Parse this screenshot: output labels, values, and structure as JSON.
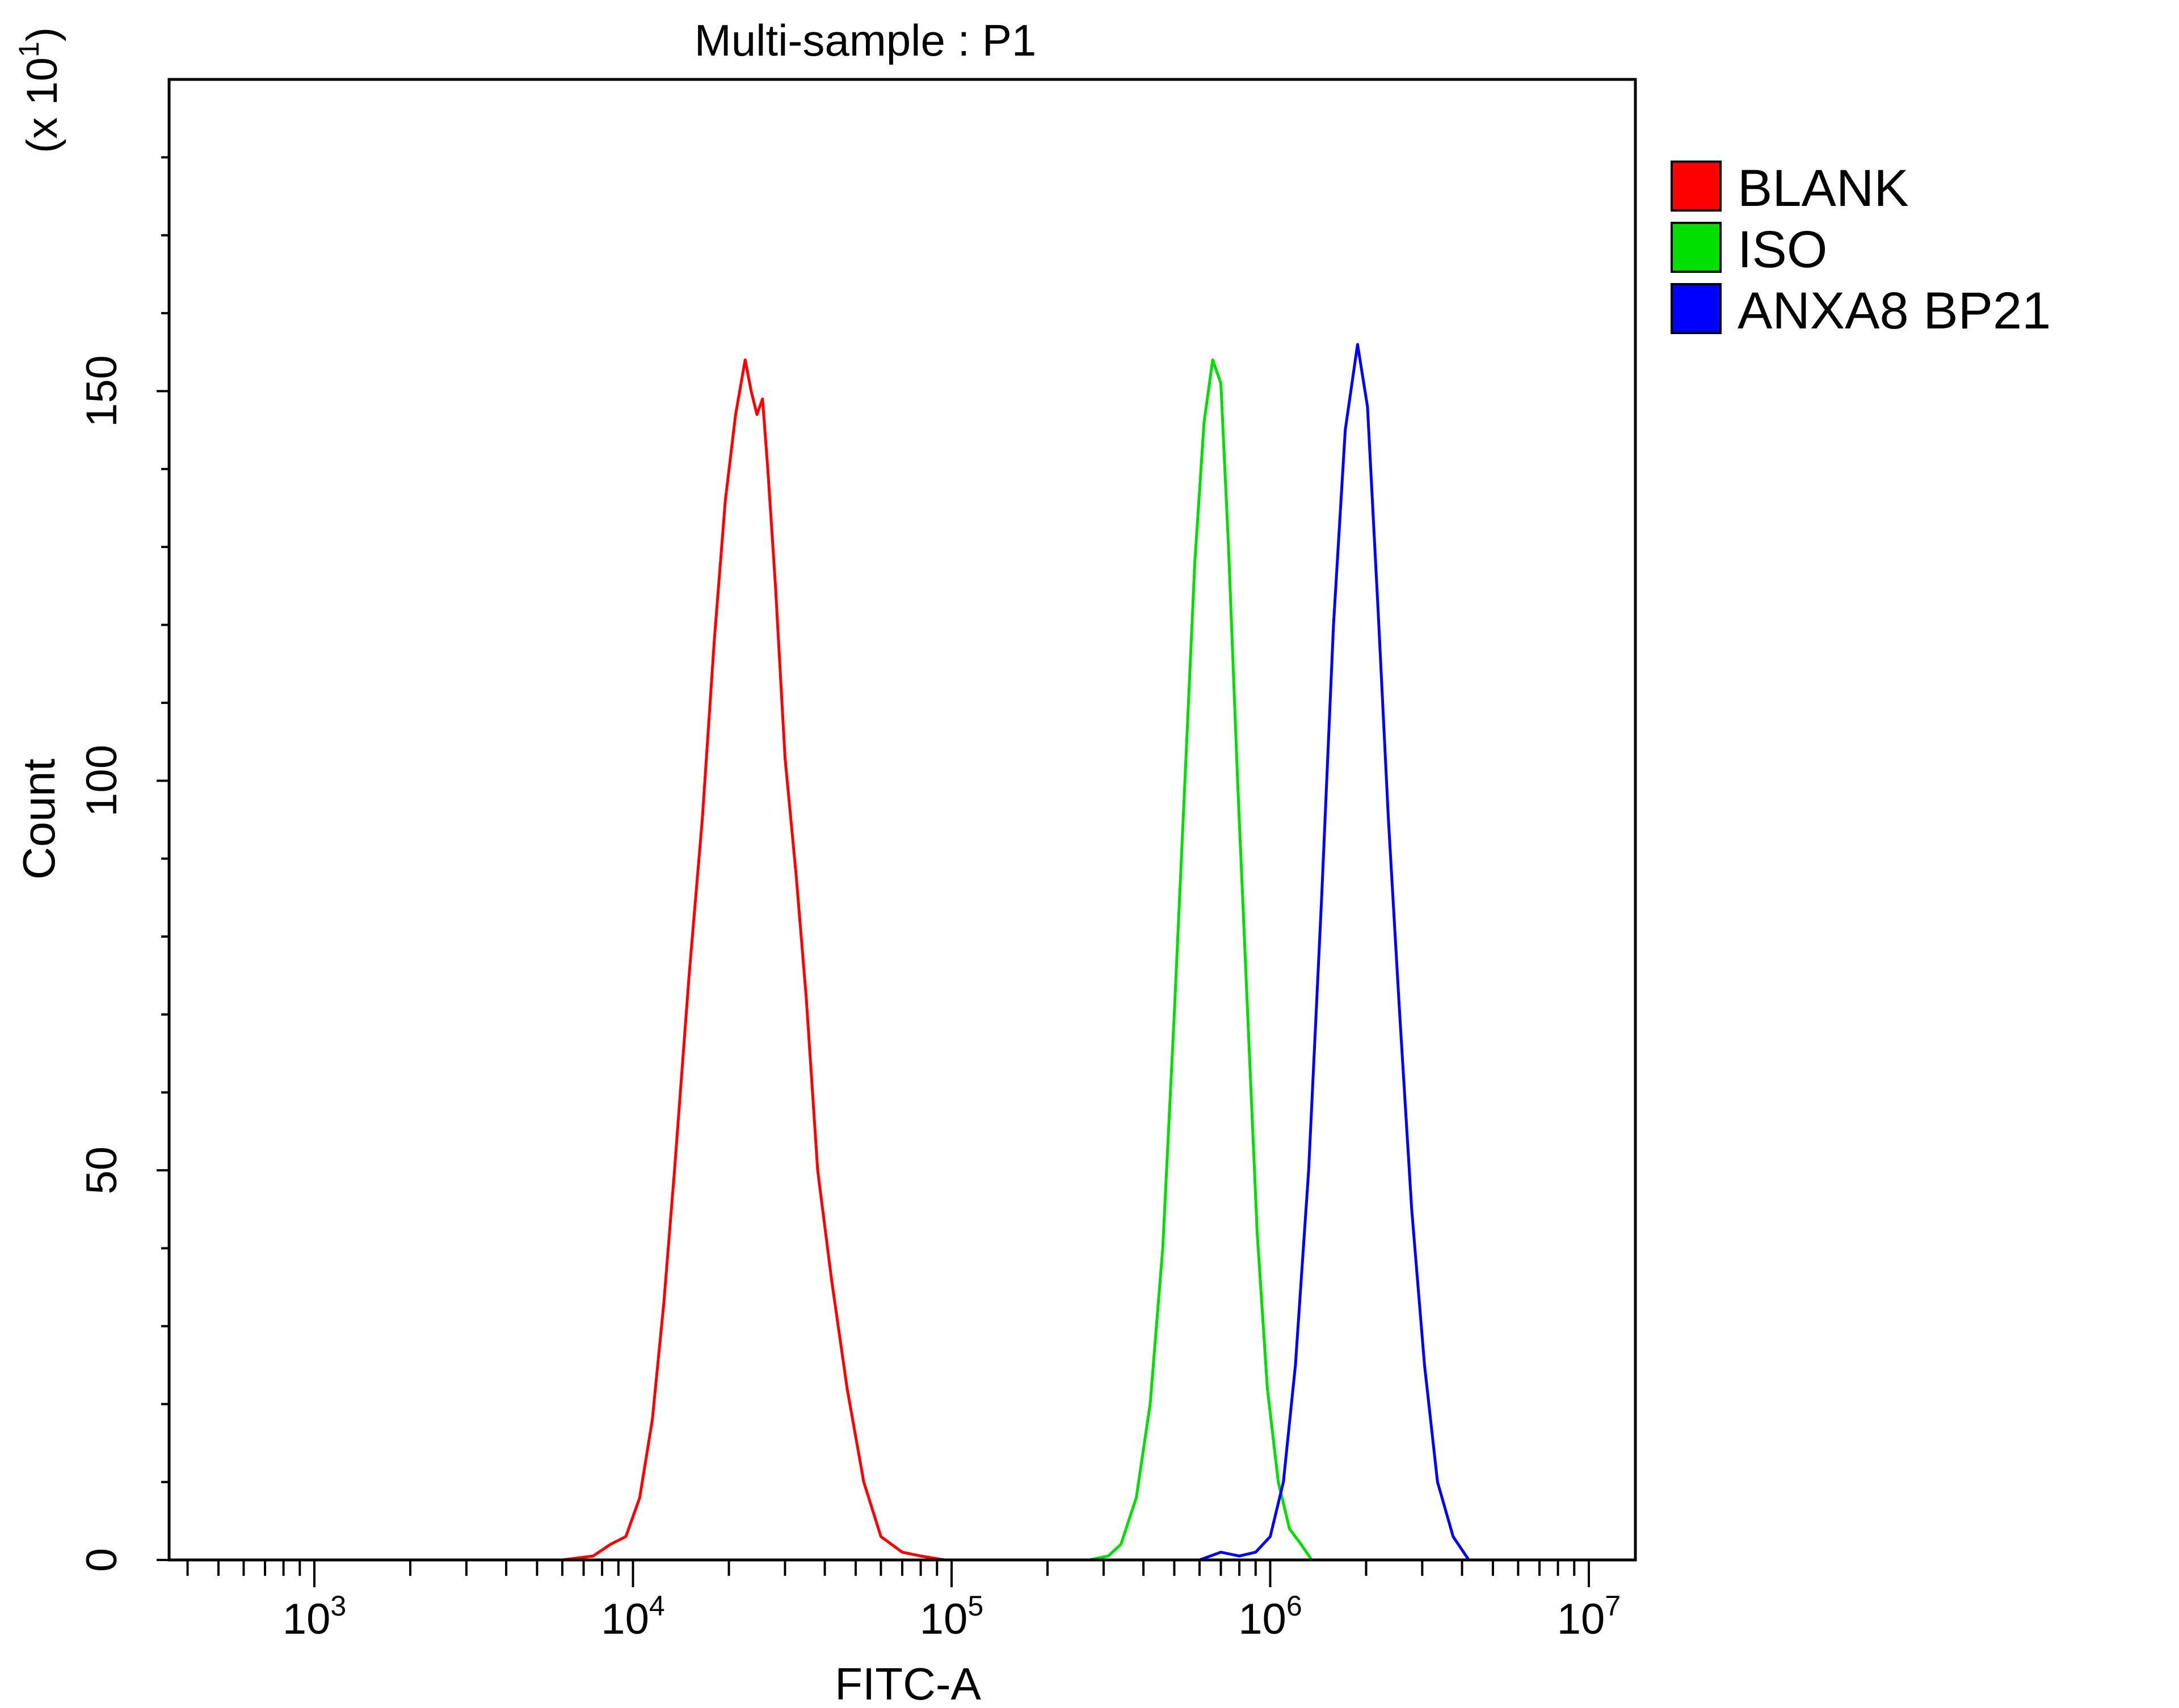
{
  "chart_data": {
    "type": "line",
    "title": "Multi-sample : P1",
    "xlabel": "FITC-A",
    "ylabel": "Count",
    "y_multiplier": {
      "prefix": "(x 10",
      "exponent": "1",
      "suffix": ")"
    },
    "x_scale": "log",
    "xlim": [
      350,
      14000000
    ],
    "ylim": [
      0,
      190
    ],
    "x_ticks": [
      {
        "base": "10",
        "exponent": "3",
        "value": 1000
      },
      {
        "base": "10",
        "exponent": "4",
        "value": 10000
      },
      {
        "base": "10",
        "exponent": "5",
        "value": 100000
      },
      {
        "base": "10",
        "exponent": "6",
        "value": 1000000
      },
      {
        "base": "10",
        "exponent": "7",
        "value": 10000000
      }
    ],
    "y_ticks": [
      {
        "label": "0",
        "value": 0
      },
      {
        "label": "50",
        "value": 50
      },
      {
        "label": "100",
        "value": 100
      },
      {
        "label": "150",
        "value": 150
      }
    ],
    "grid": false,
    "legend_position": "right",
    "series": [
      {
        "name": "BLANK",
        "color": "#ff0000",
        "points": [
          [
            6000,
            0
          ],
          [
            7500,
            0.5
          ],
          [
            8500,
            2
          ],
          [
            9500,
            3
          ],
          [
            10500,
            8
          ],
          [
            11500,
            18
          ],
          [
            12500,
            33
          ],
          [
            13500,
            50
          ],
          [
            15000,
            75
          ],
          [
            16500,
            95
          ],
          [
            18000,
            118
          ],
          [
            19500,
            136
          ],
          [
            21000,
            147
          ],
          [
            22500,
            154
          ],
          [
            23500,
            150
          ],
          [
            24500,
            147
          ],
          [
            25500,
            149
          ],
          [
            26500,
            140
          ],
          [
            28000,
            125
          ],
          [
            30000,
            103
          ],
          [
            32500,
            88
          ],
          [
            35000,
            72
          ],
          [
            38000,
            50
          ],
          [
            42000,
            36
          ],
          [
            47000,
            22
          ],
          [
            53000,
            10
          ],
          [
            60000,
            3
          ],
          [
            70000,
            1
          ],
          [
            80000,
            0.5
          ],
          [
            95000,
            0
          ]
        ]
      },
      {
        "name": "ISO",
        "color": "#00e000",
        "points": [
          [
            270000,
            0
          ],
          [
            310000,
            0.5
          ],
          [
            340000,
            2
          ],
          [
            380000,
            8
          ],
          [
            420000,
            20
          ],
          [
            460000,
            40
          ],
          [
            500000,
            70
          ],
          [
            540000,
            100
          ],
          [
            580000,
            128
          ],
          [
            620000,
            146
          ],
          [
            660000,
            154
          ],
          [
            700000,
            151
          ],
          [
            740000,
            130
          ],
          [
            790000,
            100
          ],
          [
            850000,
            70
          ],
          [
            910000,
            42
          ],
          [
            980000,
            22
          ],
          [
            1060000,
            10
          ],
          [
            1150000,
            4
          ],
          [
            1250000,
            2
          ],
          [
            1350000,
            0
          ]
        ]
      },
      {
        "name": "ANXA8 BP21",
        "color": "#0000ff",
        "points": [
          [
            600000,
            0
          ],
          [
            700000,
            1
          ],
          [
            800000,
            0.5
          ],
          [
            900000,
            1
          ],
          [
            1000000,
            3
          ],
          [
            1100000,
            10
          ],
          [
            1200000,
            25
          ],
          [
            1320000,
            50
          ],
          [
            1450000,
            85
          ],
          [
            1580000,
            120
          ],
          [
            1720000,
            145
          ],
          [
            1880000,
            156
          ],
          [
            2020000,
            148
          ],
          [
            2180000,
            122
          ],
          [
            2350000,
            95
          ],
          [
            2550000,
            70
          ],
          [
            2780000,
            45
          ],
          [
            3050000,
            25
          ],
          [
            3350000,
            10
          ],
          [
            3750000,
            3
          ],
          [
            4200000,
            0
          ]
        ]
      }
    ]
  }
}
